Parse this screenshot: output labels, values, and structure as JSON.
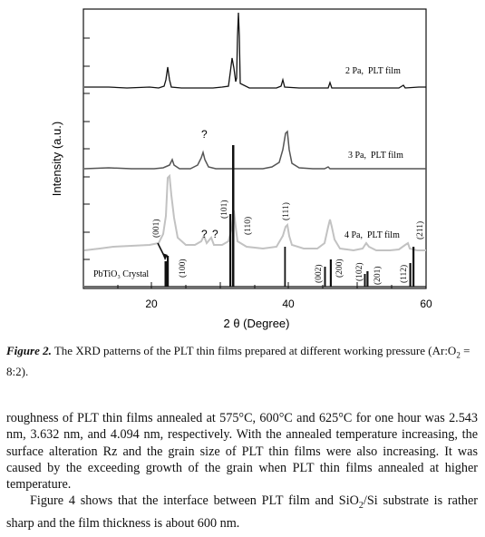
{
  "figure": {
    "y_axis_label": "Intensity (a.u.)",
    "x_axis_label": "2 θ (Degree)",
    "x_ticks": [
      "20",
      "40",
      "60"
    ],
    "traces": [
      {
        "name": "2 Pa,  PLT film",
        "color": "#111111"
      },
      {
        "name": "3 Pa,  PLT film",
        "color": "#555555"
      },
      {
        "name": "4 Pa,  PLT film",
        "color": "#c2c2c2"
      }
    ],
    "reference_label": "PbTiO₃ Crystal",
    "peak_labels": [
      "(001)",
      "(100)",
      "(101)",
      "(110)",
      "(111)",
      "(002)",
      "(200)",
      "(102)",
      "(201)",
      "(112)",
      "(211)"
    ],
    "unknown_marker": "?"
  },
  "caption": {
    "lead": "Figure 2.",
    "text": "The XRD patterns of the PLT thin films prepared at different working pressure (Ar:O",
    "sub": "2",
    "tail": " = 8:2)."
  },
  "body": {
    "p1_a": "roughness of PLT thin films annealed at 575°C, 600°C and 625°C for one hour was 2.543 nm, 3.632 nm, and 4.094 nm, respectively. With the annealed temperature increasing, the surface alteration Rz and the grain size of PLT thin films were also increasing. It was caused by the exceeding growth of the grain when PLT thin films annealed at higher temperature.",
    "p2_a": "Figure 4 shows that the interface between PLT film and SiO",
    "p2_sub": "2",
    "p2_b": "/Si substrate is rather sharp and the film thickness is about 600 nm."
  },
  "chart_data": {
    "type": "line",
    "title": "",
    "xlabel": "2 θ (Degree)",
    "ylabel": "Intensity (a.u.)",
    "xlim": [
      10,
      60
    ],
    "x_ticks": [
      20,
      40,
      60
    ],
    "grid": false,
    "series": [
      {
        "name": "2 Pa,  PLT film",
        "peaks": [
          {
            "x": 22.4,
            "height": 0.3
          },
          {
            "x": 31.9,
            "height": 0.5
          },
          {
            "x": 32.6,
            "height": 1.0
          },
          {
            "x": 39.3,
            "height": 0.15
          },
          {
            "x": 46.0,
            "height": 0.1
          },
          {
            "x": 57.3,
            "height": 0.05
          }
        ]
      },
      {
        "name": "3 Pa,  PLT film",
        "peaks": [
          {
            "x": 23.3,
            "height": 0.1
          },
          {
            "x": 27.4,
            "height": 0.18
          },
          {
            "x": 29.6,
            "height": 0.1
          },
          {
            "x": 39.6,
            "height": 0.45
          },
          {
            "x": 46.4,
            "height": 0.05
          }
        ]
      },
      {
        "name": "4 Pa,  PLT film",
        "peaks": [
          {
            "x": 22.6,
            "height": 0.95
          },
          {
            "x": 27.5,
            "height": 0.2
          },
          {
            "x": 29.6,
            "height": 0.2
          },
          {
            "x": 32.2,
            "height": 0.7
          },
          {
            "x": 39.6,
            "height": 0.3
          },
          {
            "x": 46.3,
            "height": 0.5
          },
          {
            "x": 51.5,
            "height": 0.2
          },
          {
            "x": 57.0,
            "height": 0.1
          }
        ]
      },
      {
        "name": "PbTiO₃ Crystal",
        "reference_peaks": [
          {
            "x": 22.1,
            "label": "(001)"
          },
          {
            "x": 22.6,
            "label": "(100)"
          },
          {
            "x": 31.5,
            "label": "(101)"
          },
          {
            "x": 32.4,
            "label": "(110)"
          },
          {
            "x": 39.3,
            "label": "(111)"
          },
          {
            "x": 45.3,
            "label": "(002)"
          },
          {
            "x": 46.3,
            "label": "(200)"
          },
          {
            "x": 51.5,
            "label": "(102)"
          },
          {
            "x": 52.0,
            "label": "(201)"
          },
          {
            "x": 57.2,
            "label": "(112)"
          },
          {
            "x": 57.9,
            "label": "(211)"
          }
        ]
      }
    ]
  }
}
